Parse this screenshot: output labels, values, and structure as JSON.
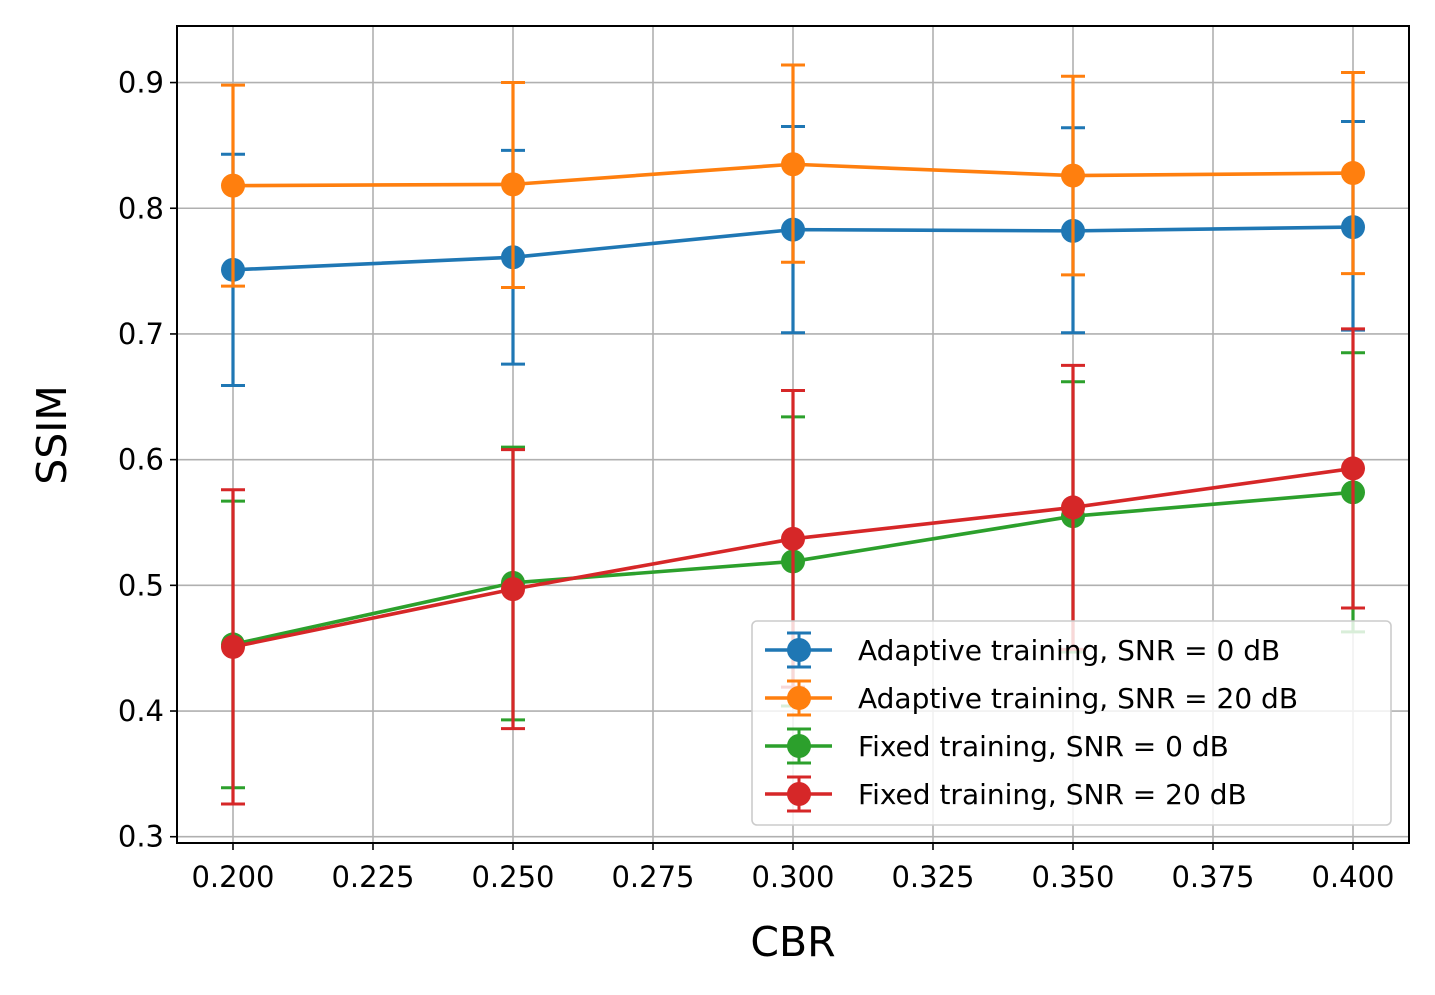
{
  "chart_data": {
    "type": "line",
    "title": "",
    "xlabel": "CBR",
    "ylabel": "SSIM",
    "xlim": [
      0.19,
      0.41
    ],
    "ylim": [
      0.295,
      0.945
    ],
    "grid": true,
    "legend_position": "lower-right",
    "x": [
      0.2,
      0.25,
      0.3,
      0.35,
      0.4
    ],
    "x_ticks": [
      0.2,
      0.225,
      0.25,
      0.275,
      0.3,
      0.325,
      0.35,
      0.375,
      0.4
    ],
    "x_tick_labels": [
      "0.200",
      "0.225",
      "0.250",
      "0.275",
      "0.300",
      "0.325",
      "0.350",
      "0.375",
      "0.400"
    ],
    "y_ticks": [
      0.3,
      0.4,
      0.5,
      0.6,
      0.7,
      0.8,
      0.9
    ],
    "y_tick_labels": [
      "0.3",
      "0.4",
      "0.5",
      "0.6",
      "0.7",
      "0.8",
      "0.9"
    ],
    "series": [
      {
        "name": "Adaptive training, SNR = 0 dB",
        "color": "#1f77b4",
        "values": [
          0.751,
          0.761,
          0.783,
          0.782,
          0.785
        ],
        "err_upper": [
          0.843,
          0.846,
          0.865,
          0.864,
          0.869
        ],
        "err_lower": [
          0.659,
          0.676,
          0.701,
          0.701,
          0.703
        ]
      },
      {
        "name": "Adaptive training, SNR = 20 dB",
        "color": "#ff7f0e",
        "values": [
          0.818,
          0.819,
          0.835,
          0.826,
          0.828
        ],
        "err_upper": [
          0.898,
          0.9,
          0.914,
          0.905,
          0.908
        ],
        "err_lower": [
          0.738,
          0.737,
          0.757,
          0.747,
          0.748
        ]
      },
      {
        "name": "Fixed training, SNR = 0 dB",
        "color": "#2ca02c",
        "values": [
          0.453,
          0.502,
          0.519,
          0.555,
          0.574
        ],
        "err_upper": [
          0.567,
          0.61,
          0.634,
          0.662,
          0.685
        ],
        "err_lower": [
          0.339,
          0.393,
          0.404,
          0.447,
          0.463
        ]
      },
      {
        "name": "Fixed training, SNR = 20 dB",
        "color": "#d62728",
        "values": [
          0.451,
          0.497,
          0.537,
          0.562,
          0.593
        ],
        "err_upper": [
          0.576,
          0.608,
          0.655,
          0.675,
          0.704
        ],
        "err_lower": [
          0.326,
          0.386,
          0.419,
          0.449,
          0.482
        ]
      }
    ]
  }
}
